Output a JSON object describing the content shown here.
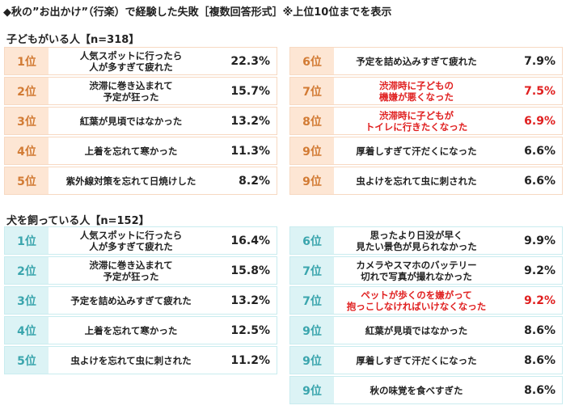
{
  "title": "◆秋の”お出かけ”（行楽）で経験した失敗［複数回答形式］※上位10位までを表示",
  "colors": {
    "kids_rank_bg": "#fde6d4",
    "kids_rank_text": "#d27b34",
    "dog_rank_bg": "#dcf3f5",
    "dog_rank_text": "#3aa5ad",
    "highlight": "#e02020"
  },
  "sections": [
    {
      "label": "子どもがいる人【n=318】",
      "rows": [
        {
          "rank": "1位",
          "text": "人気スポットに行ったら\n人が多すぎて疲れた",
          "pct": "22.3%"
        },
        {
          "rank": "2位",
          "text": "渋滞に巻き込まれて\n予定が狂った",
          "pct": "15.7%"
        },
        {
          "rank": "3位",
          "text": "紅葉が見頃ではなかった",
          "pct": "13.2%"
        },
        {
          "rank": "4位",
          "text": "上着を忘れて寒かった",
          "pct": "11.3%"
        },
        {
          "rank": "5位",
          "text": "紫外線対策を忘れて日焼けした",
          "pct": "8.2%"
        },
        {
          "rank": "6位",
          "text": "予定を詰め込みすぎて疲れた",
          "pct": "7.9%"
        },
        {
          "rank": "7位",
          "text": "渋滞時に子どもの\n機嫌が悪くなった",
          "pct": "7.5%",
          "highlight": true
        },
        {
          "rank": "8位",
          "text": "渋滞時に子どもが\nトイレに行きたくなった",
          "pct": "6.9%",
          "highlight": true
        },
        {
          "rank": "9位",
          "text": "厚着しすぎて汗だくになった",
          "pct": "6.6%"
        },
        {
          "rank": "9位",
          "text": "虫よけを忘れて虫に刺された",
          "pct": "6.6%"
        }
      ]
    },
    {
      "label": "犬を飼っている人【n=152】",
      "rows": [
        {
          "rank": "1位",
          "text": "人気スポットに行ったら\n人が多すぎて疲れた",
          "pct": "16.4%"
        },
        {
          "rank": "2位",
          "text": "渋滞に巻き込まれて\n予定が狂った",
          "pct": "15.8%"
        },
        {
          "rank": "3位",
          "text": "予定を詰め込みすぎて疲れた",
          "pct": "13.2%"
        },
        {
          "rank": "4位",
          "text": "上着を忘れて寒かった",
          "pct": "12.5%"
        },
        {
          "rank": "5位",
          "text": "虫よけを忘れて虫に刺された",
          "pct": "11.2%"
        },
        {
          "rank": "6位",
          "text": "思ったより日没が早く\n見たい景色が見られなかった",
          "pct": "9.9%"
        },
        {
          "rank": "7位",
          "text": "カメラやスマホのバッテリー\n切れで写真が撮れなかった",
          "pct": "9.2%"
        },
        {
          "rank": "7位",
          "text": "ペットが歩くのを嫌がって\n抱っこしなければいけなくなった",
          "pct": "9.2%",
          "highlight": true
        },
        {
          "rank": "9位",
          "text": "紅葉が見頃ではなかった",
          "pct": "8.6%"
        },
        {
          "rank": "9位",
          "text": "厚着しすぎて汗だくになった",
          "pct": "8.6%"
        },
        {
          "rank": "9位",
          "text": "秋の味覚を食べすぎた",
          "pct": "8.6%"
        }
      ]
    }
  ]
}
